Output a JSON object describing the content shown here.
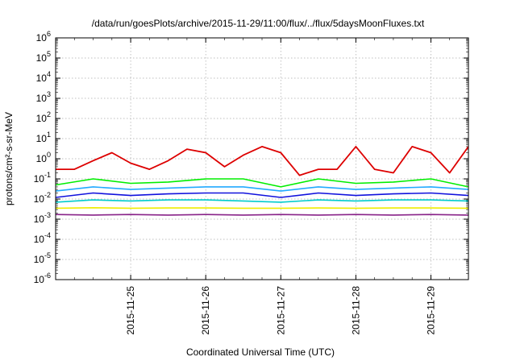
{
  "chart_data": {
    "type": "line",
    "title": "/data/run/goesPlots/archive/2015-11-29/11:00/flux/../flux/5daysMoonFluxes.txt",
    "xlabel": "Coordinated Universal Time (UTC)",
    "ylabel": "protons/cm²-s-sr-MeV",
    "yscale": "log",
    "ylim": [
      1e-06,
      1000000.0
    ],
    "xlim": [
      "2015-11-24T00:00",
      "2015-11-29T12:00"
    ],
    "grid": true,
    "legend": "none",
    "y_tick_labels": [
      {
        "base": "10",
        "exp": "-6"
      },
      {
        "base": "10",
        "exp": "-5"
      },
      {
        "base": "10",
        "exp": "-4"
      },
      {
        "base": "10",
        "exp": "-3"
      },
      {
        "base": "10",
        "exp": "-2"
      },
      {
        "base": "10",
        "exp": "-1"
      },
      {
        "base": "10",
        "exp": "0"
      },
      {
        "base": "10",
        "exp": "1"
      },
      {
        "base": "10",
        "exp": "2"
      },
      {
        "base": "10",
        "exp": "3"
      },
      {
        "base": "10",
        "exp": "4"
      },
      {
        "base": "10",
        "exp": "5"
      },
      {
        "base": "10",
        "exp": "6"
      }
    ],
    "x_ticks": [
      "2015-11-25",
      "2015-11-26",
      "2015-11-27",
      "2015-11-28",
      "2015-11-29"
    ],
    "series": [
      {
        "color": "#dd0000",
        "x": [
          "2015-11-24T00:00",
          "2015-11-24T06:00",
          "2015-11-24T12:00",
          "2015-11-24T18:00",
          "2015-11-25T00:00",
          "2015-11-25T06:00",
          "2015-11-25T12:00",
          "2015-11-25T18:00",
          "2015-11-26T00:00",
          "2015-11-26T06:00",
          "2015-11-26T12:00",
          "2015-11-26T18:00",
          "2015-11-27T00:00",
          "2015-11-27T06:00",
          "2015-11-27T12:00",
          "2015-11-27T18:00",
          "2015-11-28T00:00",
          "2015-11-28T06:00",
          "2015-11-28T12:00",
          "2015-11-28T18:00",
          "2015-11-29T00:00",
          "2015-11-29T06:00",
          "2015-11-29T12:00"
        ],
        "values": [
          0.3,
          0.3,
          0.8,
          2.0,
          0.6,
          0.3,
          0.8,
          3.0,
          2.0,
          0.4,
          1.5,
          4.0,
          2.0,
          0.15,
          0.3,
          0.3,
          4.0,
          0.3,
          0.2,
          4.0,
          2.0,
          0.2,
          4.0
        ]
      },
      {
        "color": "#00ee00",
        "x": [
          "2015-11-24T00:00",
          "2015-11-24T12:00",
          "2015-11-25T00:00",
          "2015-11-25T12:00",
          "2015-11-26T00:00",
          "2015-11-26T12:00",
          "2015-11-27T00:00",
          "2015-11-27T12:00",
          "2015-11-28T00:00",
          "2015-11-28T12:00",
          "2015-11-29T00:00",
          "2015-11-29T12:00"
        ],
        "values": [
          0.05,
          0.1,
          0.06,
          0.07,
          0.1,
          0.1,
          0.04,
          0.1,
          0.06,
          0.07,
          0.1,
          0.04
        ]
      },
      {
        "color": "#22aaff",
        "x": [
          "2015-11-24T00:00",
          "2015-11-24T12:00",
          "2015-11-25T00:00",
          "2015-11-25T12:00",
          "2015-11-26T00:00",
          "2015-11-26T12:00",
          "2015-11-27T00:00",
          "2015-11-27T12:00",
          "2015-11-28T00:00",
          "2015-11-28T12:00",
          "2015-11-29T00:00",
          "2015-11-29T12:00"
        ],
        "values": [
          0.025,
          0.04,
          0.03,
          0.035,
          0.04,
          0.04,
          0.025,
          0.04,
          0.03,
          0.035,
          0.04,
          0.03
        ]
      },
      {
        "color": "#1111dd",
        "x": [
          "2015-11-24T00:00",
          "2015-11-24T12:00",
          "2015-11-25T00:00",
          "2015-11-25T12:00",
          "2015-11-26T00:00",
          "2015-11-26T12:00",
          "2015-11-27T00:00",
          "2015-11-27T12:00",
          "2015-11-28T00:00",
          "2015-11-28T12:00",
          "2015-11-29T00:00",
          "2015-11-29T12:00"
        ],
        "values": [
          0.012,
          0.02,
          0.015,
          0.018,
          0.02,
          0.02,
          0.012,
          0.02,
          0.015,
          0.018,
          0.02,
          0.015
        ]
      },
      {
        "color": "#00cccc",
        "x": [
          "2015-11-24T00:00",
          "2015-11-24T12:00",
          "2015-11-25T00:00",
          "2015-11-25T12:00",
          "2015-11-26T00:00",
          "2015-11-26T12:00",
          "2015-11-27T00:00",
          "2015-11-27T12:00",
          "2015-11-28T00:00",
          "2015-11-28T12:00",
          "2015-11-29T00:00",
          "2015-11-29T12:00"
        ],
        "values": [
          0.007,
          0.009,
          0.008,
          0.009,
          0.009,
          0.008,
          0.007,
          0.009,
          0.008,
          0.009,
          0.009,
          0.008
        ]
      },
      {
        "color": "#eeee00",
        "x": [
          "2015-11-24T00:00",
          "2015-11-24T12:00",
          "2015-11-25T00:00",
          "2015-11-25T12:00",
          "2015-11-26T00:00",
          "2015-11-26T12:00",
          "2015-11-27T00:00",
          "2015-11-27T12:00",
          "2015-11-28T00:00",
          "2015-11-28T12:00",
          "2015-11-29T00:00",
          "2015-11-29T12:00"
        ],
        "values": [
          0.0035,
          0.0037,
          0.0035,
          0.0036,
          0.0036,
          0.0035,
          0.0035,
          0.0036,
          0.0035,
          0.0036,
          0.0036,
          0.0035
        ]
      },
      {
        "color": "#882288",
        "x": [
          "2015-11-24T00:00",
          "2015-11-24T12:00",
          "2015-11-25T00:00",
          "2015-11-25T12:00",
          "2015-11-26T00:00",
          "2015-11-26T12:00",
          "2015-11-27T00:00",
          "2015-11-27T12:00",
          "2015-11-28T00:00",
          "2015-11-28T12:00",
          "2015-11-29T00:00",
          "2015-11-29T12:00"
        ],
        "values": [
          0.0017,
          0.0016,
          0.0017,
          0.0016,
          0.0017,
          0.0016,
          0.0017,
          0.0016,
          0.0017,
          0.0016,
          0.0017,
          0.0016
        ]
      }
    ]
  }
}
